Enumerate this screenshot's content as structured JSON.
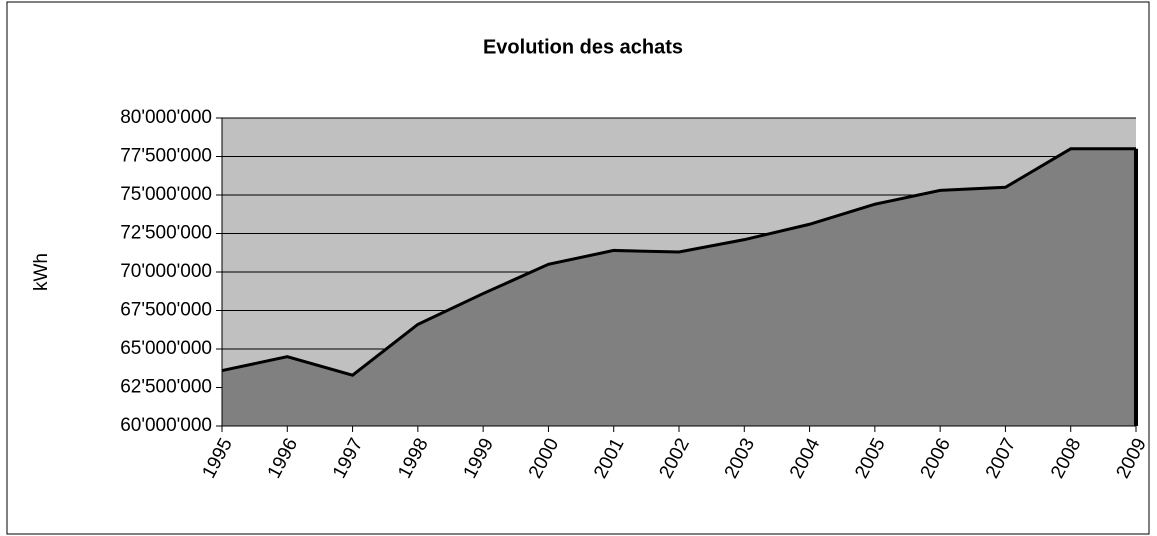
{
  "chart_data": {
    "type": "area",
    "title": "Evolution des achats",
    "y_label": "kWh",
    "categories": [
      "1995",
      "1996",
      "1997",
      "1998",
      "1999",
      "2000",
      "2001",
      "2002",
      "2003",
      "2004",
      "2005",
      "2006",
      "2007",
      "2008",
      "2009"
    ],
    "series": [
      {
        "name": "kWh",
        "color": "#808080",
        "values": [
          63600000,
          64500000,
          63300000,
          66600000,
          68600000,
          70500000,
          71400000,
          71300000,
          72100000,
          73100000,
          74400000,
          75300000,
          75500000,
          78000000,
          78000000
        ]
      }
    ],
    "ylim": [
      60000000,
      80000000
    ],
    "yticks": [
      {
        "value": 60000000,
        "label": "60'000'000"
      },
      {
        "value": 62500000,
        "label": "62'500'000"
      },
      {
        "value": 65000000,
        "label": "65'000'000"
      },
      {
        "value": 67500000,
        "label": "67'500'000"
      },
      {
        "value": 70000000,
        "label": "70'000'000"
      },
      {
        "value": 72500000,
        "label": "72'500'000"
      },
      {
        "value": 75000000,
        "label": "75'000'000"
      },
      {
        "value": 77500000,
        "label": "77'500'000"
      },
      {
        "value": 80000000,
        "label": "80'000'000"
      }
    ],
    "grid": true,
    "background": "#c0c0c0",
    "line_color": "#000000"
  }
}
